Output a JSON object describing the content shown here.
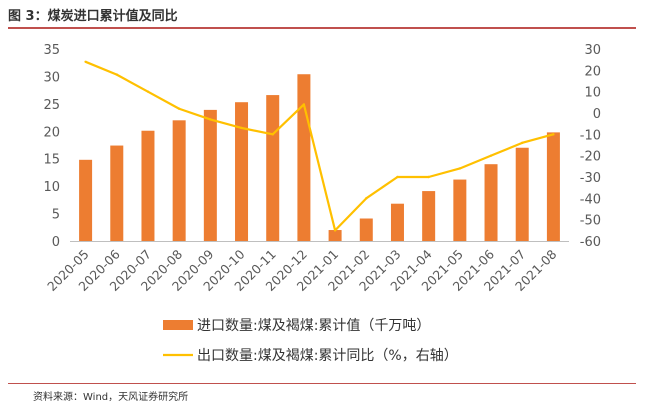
{
  "figure": {
    "title": "图 3：煤炭进口累计值及同比",
    "source": "资料来源：Wind，天风证券研究所",
    "accent_color": "#C0504D"
  },
  "chart_data": {
    "type": "bar",
    "categories": [
      "2020-05",
      "2020-06",
      "2020-07",
      "2020-08",
      "2020-09",
      "2020-10",
      "2020-11",
      "2020-12",
      "2021-01",
      "2021-02",
      "2021-03",
      "2021-04",
      "2021-05",
      "2021-06",
      "2021-07",
      "2021-08"
    ],
    "series": [
      {
        "name": "进口数量:煤及褐煤:累计值（千万吨）",
        "type": "bar",
        "axis": "left",
        "color": "#ED7D31",
        "values": [
          14.8,
          17.4,
          20.1,
          22.0,
          23.9,
          25.3,
          26.6,
          30.4,
          2.0,
          4.1,
          6.8,
          9.1,
          11.2,
          14.0,
          17.0,
          19.8
        ]
      },
      {
        "name": "出口数量:煤及褐煤:累计同比（%，右轴）",
        "type": "line",
        "axis": "right",
        "color": "#FFC000",
        "values": [
          24,
          18,
          10,
          2,
          -3,
          -7,
          -10,
          4,
          -55,
          -40,
          -30,
          -30,
          -26,
          -20,
          -14,
          -10
        ]
      }
    ],
    "y_left": {
      "min": 0,
      "max": 35,
      "step": 5,
      "ticks": [
        "0",
        "5",
        "10",
        "15",
        "20",
        "25",
        "30",
        "35"
      ]
    },
    "y_right": {
      "min": -60,
      "max": 30,
      "step": 10,
      "ticks": [
        "-60",
        "-50",
        "-40",
        "-30",
        "-20",
        "-10",
        "0",
        "10",
        "20",
        "30"
      ]
    },
    "grid": false,
    "legend_position": "bottom"
  }
}
